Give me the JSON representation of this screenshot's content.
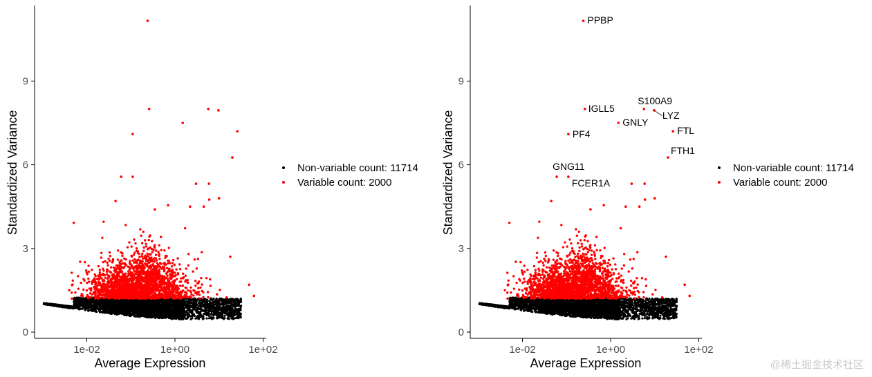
{
  "chart_data": [
    {
      "type": "scatter",
      "xlabel": "Average Expression",
      "ylabel": "Standardized Variance",
      "xscale": "log10",
      "xlim": [
        0.0006,
        60
      ],
      "ylim": [
        0,
        11.5
      ],
      "xticks": [
        "1e-02",
        "1e+00",
        "1e+02"
      ],
      "xtick_values": [
        0.01,
        1,
        100
      ],
      "yticks": [
        "0",
        "3",
        "6",
        "9"
      ],
      "ytick_values": [
        0,
        3,
        6,
        9
      ],
      "grid": false,
      "legend_position": "right",
      "series": [
        {
          "name": "Non-variable count: 11714",
          "color": "#000000",
          "count": 11714
        },
        {
          "name": "Variable count: 2000",
          "color": "#ff0000",
          "count": 2000
        }
      ],
      "highlight_points": [
        {
          "x": 0.24,
          "y": 11.16
        },
        {
          "x": 0.26,
          "y": 8.0
        },
        {
          "x": 5.7,
          "y": 8.0
        },
        {
          "x": 9.7,
          "y": 7.95
        },
        {
          "x": 1.5,
          "y": 7.5
        },
        {
          "x": 0.11,
          "y": 7.1
        },
        {
          "x": 26,
          "y": 7.2
        },
        {
          "x": 20,
          "y": 6.26
        },
        {
          "x": 0.06,
          "y": 5.57
        },
        {
          "x": 0.11,
          "y": 5.57
        },
        {
          "x": 3.0,
          "y": 5.32
        },
        {
          "x": 5.9,
          "y": 5.32
        },
        {
          "x": 6.0,
          "y": 4.75
        },
        {
          "x": 10,
          "y": 4.8
        },
        {
          "x": 2.2,
          "y": 4.5
        },
        {
          "x": 4.5,
          "y": 4.5
        },
        {
          "x": 0.35,
          "y": 4.4
        },
        {
          "x": 0.7,
          "y": 4.55
        },
        {
          "x": 0.045,
          "y": 4.7
        },
        {
          "x": 18,
          "y": 2.7
        },
        {
          "x": 48,
          "y": 1.7
        },
        {
          "x": 62,
          "y": 1.3
        }
      ]
    },
    {
      "type": "scatter",
      "xlabel": "Average Expression",
      "ylabel": "Standardized Variance",
      "xscale": "log10",
      "xlim": [
        0.0006,
        60
      ],
      "ylim": [
        0,
        11.5
      ],
      "xticks": [
        "1e-02",
        "1e+00",
        "1e+02"
      ],
      "xtick_values": [
        0.01,
        1,
        100
      ],
      "yticks": [
        "0",
        "3",
        "6",
        "9"
      ],
      "ytick_values": [
        0,
        3,
        6,
        9
      ],
      "grid": false,
      "legend_position": "right",
      "series": [
        {
          "name": "Non-variable count: 11714",
          "color": "#000000",
          "count": 11714
        },
        {
          "name": "Variable count: 2000",
          "color": "#ff0000",
          "count": 2000
        }
      ],
      "labels": [
        {
          "gene": "PPBP",
          "x": 0.24,
          "y": 11.16
        },
        {
          "gene": "IGLL5",
          "x": 0.26,
          "y": 8.0
        },
        {
          "gene": "S100A9",
          "x": 5.7,
          "y": 8.0
        },
        {
          "gene": "LYZ",
          "x": 9.7,
          "y": 7.95
        },
        {
          "gene": "GNLY",
          "x": 1.5,
          "y": 7.5
        },
        {
          "gene": "PF4",
          "x": 0.11,
          "y": 7.1
        },
        {
          "gene": "FTL",
          "x": 26,
          "y": 7.2
        },
        {
          "gene": "FTH1",
          "x": 20,
          "y": 6.26
        },
        {
          "gene": "GNG11",
          "x": 0.06,
          "y": 5.57
        },
        {
          "gene": "FCER1A",
          "x": 0.11,
          "y": 5.57
        }
      ]
    }
  ],
  "watermark": "@稀土掘金技术社区"
}
